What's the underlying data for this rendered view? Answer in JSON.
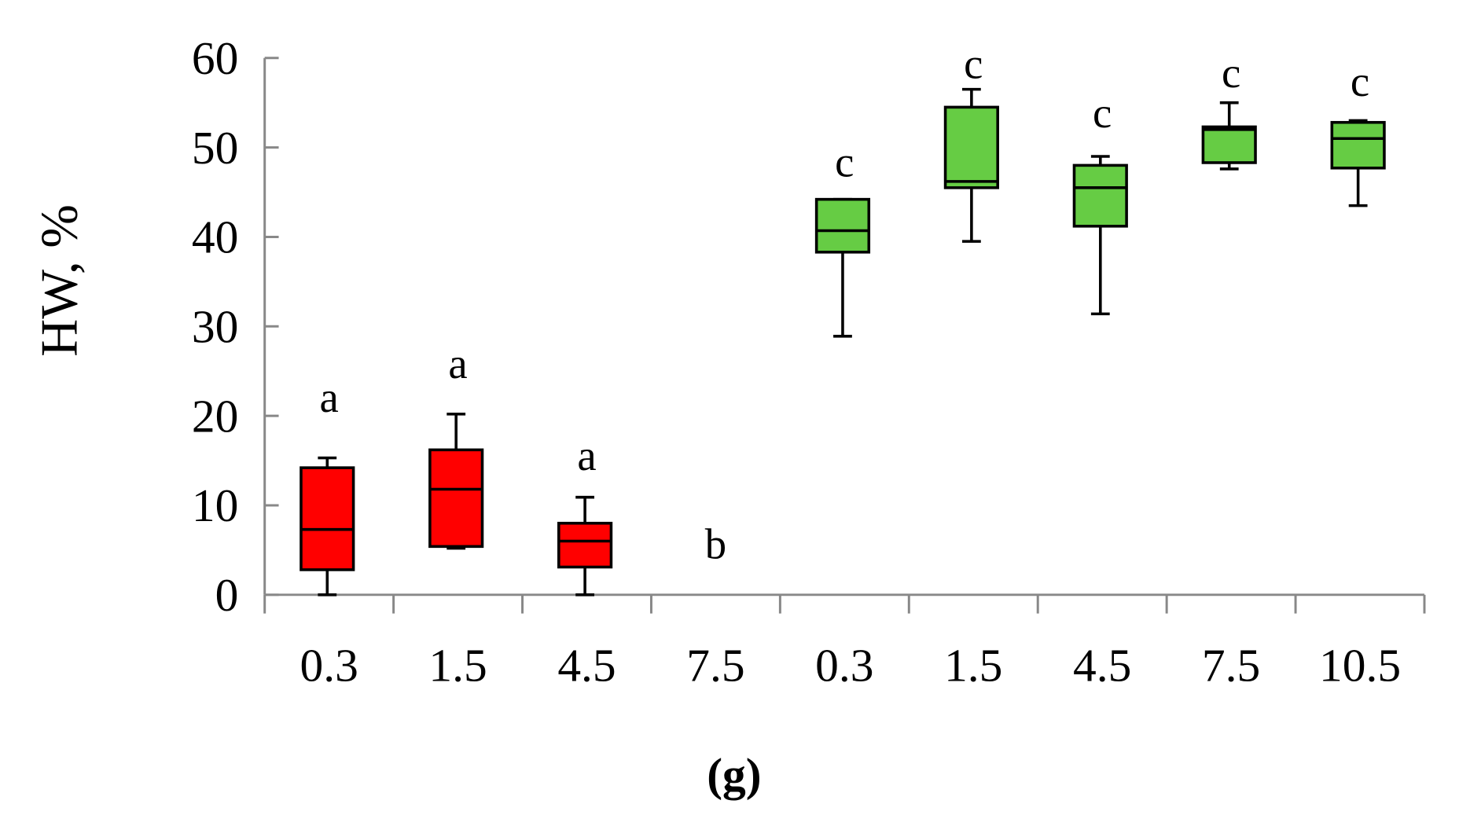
{
  "chart_data": {
    "type": "box",
    "title": "",
    "panel_label": "(g)",
    "ylabel": "HW, %",
    "xlabel": "",
    "ylim": [
      0,
      60
    ],
    "yticks": [
      0,
      10,
      20,
      30,
      40,
      50,
      60
    ],
    "categories": [
      "0.3",
      "1.5",
      "4.5",
      "7.5",
      "0.3",
      "1.5",
      "4.5",
      "7.5",
      "10.5"
    ],
    "colors": {
      "red_group": "#ff0000",
      "green_group": "#66cc44"
    },
    "boxes": [
      {
        "category": "0.3",
        "group": "red_group",
        "min": 0,
        "q1": 2.8,
        "median": 7.3,
        "q3": 14.2,
        "max": 15.3,
        "letter": "a",
        "letter_y": 21.7
      },
      {
        "category": "1.5",
        "group": "red_group",
        "min": 5.2,
        "q1": 5.4,
        "median": 11.8,
        "q3": 16.2,
        "max": 20.2,
        "letter": "a",
        "letter_y": 25.5
      },
      {
        "category": "4.5",
        "group": "red_group",
        "min": 0,
        "q1": 3.1,
        "median": 6.0,
        "q3": 8.0,
        "max": 10.9,
        "letter": "a",
        "letter_y": 15.2
      },
      {
        "category": "7.5",
        "group": "red_group",
        "min": null,
        "q1": null,
        "median": null,
        "q3": null,
        "max": null,
        "letter": "b",
        "letter_y": 5.3
      },
      {
        "category": "0.3",
        "group": "green_group",
        "min": 28.9,
        "q1": 38.3,
        "median": 40.7,
        "q3": 44.2,
        "max": 44.2,
        "letter": "c",
        "letter_y": 48
      },
      {
        "category": "1.5",
        "group": "green_group",
        "min": 39.5,
        "q1": 45.5,
        "median": 46.2,
        "q3": 54.5,
        "max": 56.5,
        "letter": "c",
        "letter_y": 59
      },
      {
        "category": "4.5",
        "group": "green_group",
        "min": 31.4,
        "q1": 41.2,
        "median": 45.5,
        "q3": 48.0,
        "max": 49.0,
        "letter": "c",
        "letter_y": 53.5
      },
      {
        "category": "7.5",
        "group": "green_group",
        "min": 47.6,
        "q1": 48.3,
        "median": 52.0,
        "q3": 52.3,
        "max": 55.0,
        "letter": "c",
        "letter_y": 58
      },
      {
        "category": "10.5",
        "group": "green_group",
        "min": 43.5,
        "q1": 47.7,
        "median": 51.0,
        "q3": 52.8,
        "max": 53.0,
        "letter": "c",
        "letter_y": 57
      }
    ]
  }
}
